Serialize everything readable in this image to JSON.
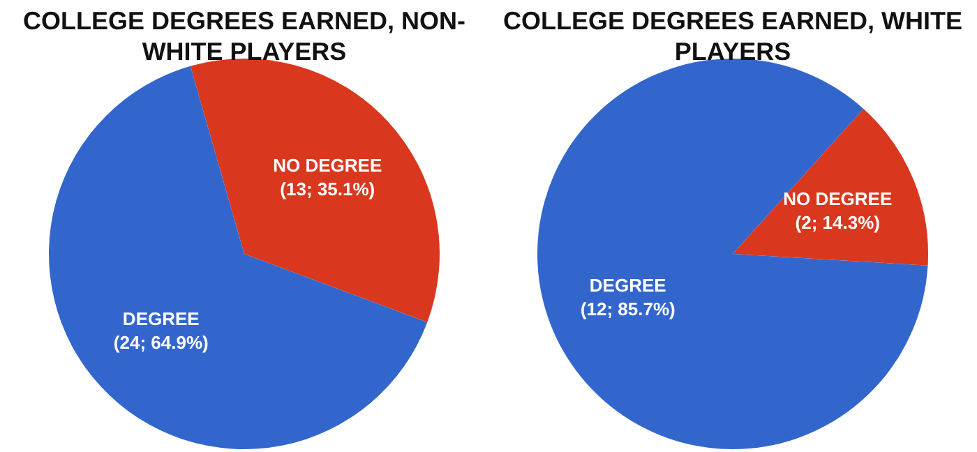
{
  "chart_data": [
    {
      "type": "pie",
      "title": "COLLEGE DEGREES EARNED, NON-WHITE PLAYERS",
      "categories": [
        "NO DEGREE",
        "DEGREE"
      ],
      "values": [
        13,
        24
      ],
      "colors": [
        "#d9381e",
        "#3366cc"
      ],
      "value_labels": [
        "(13; 35.1%)",
        "(24; 64.9%)"
      ]
    },
    {
      "type": "pie",
      "title": "COLLEGE DEGREES EARNED, WHITE PLAYERS",
      "categories": [
        "NO DEGREE",
        "DEGREE"
      ],
      "values": [
        2,
        12
      ],
      "colors": [
        "#d9381e",
        "#3366cc"
      ],
      "value_labels": [
        "(2; 14.3%)",
        "(12; 85.7%)"
      ]
    }
  ]
}
